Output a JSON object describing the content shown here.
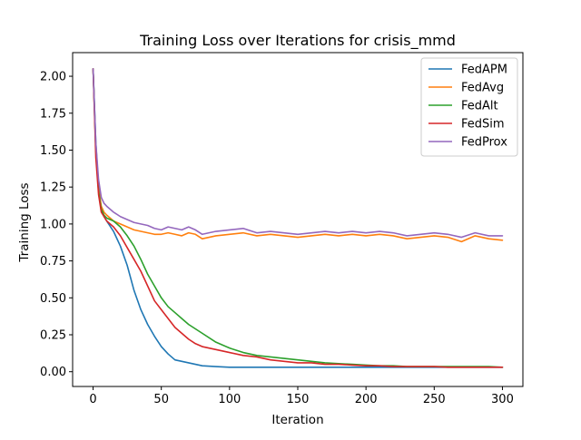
{
  "chart_data": {
    "type": "line",
    "title": "Training Loss over Iterations for crisis_mmd",
    "xlabel": "Iteration",
    "ylabel": "Training Loss",
    "xlim": [
      -15,
      315
    ],
    "ylim": [
      -0.1,
      2.16
    ],
    "xticks": [
      0,
      50,
      100,
      150,
      200,
      250,
      300
    ],
    "yticks": [
      0.0,
      0.25,
      0.5,
      0.75,
      1.0,
      1.25,
      1.5,
      1.75,
      2.0
    ],
    "xtick_labels": [
      "0",
      "50",
      "100",
      "150",
      "200",
      "250",
      "300"
    ],
    "ytick_labels": [
      "0.00",
      "0.25",
      "0.50",
      "0.75",
      "1.00",
      "1.25",
      "1.50",
      "1.75",
      "2.00"
    ],
    "grid": false,
    "legend_position": "upper right",
    "series": [
      {
        "name": "FedAPM",
        "color": "#1f77b4",
        "x": [
          0,
          2,
          4,
          6,
          8,
          10,
          15,
          20,
          25,
          30,
          35,
          40,
          45,
          50,
          55,
          60,
          65,
          70,
          75,
          80,
          90,
          100,
          110,
          120,
          130,
          140,
          150,
          160,
          170,
          180,
          190,
          200,
          210,
          220,
          230,
          240,
          250,
          260,
          270,
          280,
          290,
          300
        ],
        "y": [
          2.05,
          1.55,
          1.25,
          1.1,
          1.05,
          1.02,
          0.95,
          0.85,
          0.72,
          0.55,
          0.42,
          0.32,
          0.24,
          0.17,
          0.12,
          0.08,
          0.07,
          0.06,
          0.05,
          0.04,
          0.035,
          0.03,
          0.03,
          0.03,
          0.03,
          0.03,
          0.03,
          0.03,
          0.03,
          0.03,
          0.03,
          0.03,
          0.03,
          0.03,
          0.03,
          0.03,
          0.03,
          0.03,
          0.03,
          0.03,
          0.03,
          0.03
        ]
      },
      {
        "name": "FedAvg",
        "color": "#ff7f0e",
        "x": [
          0,
          2,
          4,
          6,
          8,
          10,
          15,
          20,
          25,
          30,
          35,
          40,
          45,
          50,
          55,
          60,
          65,
          70,
          75,
          80,
          90,
          100,
          110,
          120,
          130,
          140,
          150,
          160,
          170,
          180,
          190,
          200,
          210,
          220,
          230,
          240,
          250,
          260,
          270,
          280,
          290,
          300
        ],
        "y": [
          2.05,
          1.5,
          1.25,
          1.12,
          1.08,
          1.06,
          1.02,
          1.0,
          0.98,
          0.96,
          0.95,
          0.94,
          0.93,
          0.93,
          0.94,
          0.93,
          0.92,
          0.94,
          0.93,
          0.9,
          0.92,
          0.93,
          0.94,
          0.92,
          0.93,
          0.92,
          0.91,
          0.92,
          0.93,
          0.92,
          0.93,
          0.92,
          0.93,
          0.92,
          0.9,
          0.91,
          0.92,
          0.91,
          0.88,
          0.92,
          0.9,
          0.89
        ]
      },
      {
        "name": "FedAlt",
        "color": "#2ca02c",
        "x": [
          0,
          2,
          4,
          6,
          8,
          10,
          15,
          20,
          25,
          30,
          35,
          40,
          45,
          50,
          55,
          60,
          65,
          70,
          75,
          80,
          90,
          100,
          110,
          120,
          130,
          140,
          150,
          160,
          170,
          180,
          190,
          200,
          210,
          220,
          230,
          240,
          250,
          260,
          270,
          280,
          290,
          300
        ],
        "y": [
          2.05,
          1.5,
          1.22,
          1.1,
          1.06,
          1.04,
          1.02,
          0.98,
          0.92,
          0.85,
          0.76,
          0.66,
          0.58,
          0.5,
          0.44,
          0.4,
          0.36,
          0.32,
          0.29,
          0.26,
          0.2,
          0.16,
          0.13,
          0.11,
          0.1,
          0.09,
          0.08,
          0.07,
          0.06,
          0.055,
          0.05,
          0.045,
          0.04,
          0.04,
          0.035,
          0.035,
          0.035,
          0.035,
          0.035,
          0.035,
          0.035,
          0.03
        ]
      },
      {
        "name": "FedSim",
        "color": "#d62728",
        "x": [
          0,
          2,
          4,
          6,
          8,
          10,
          15,
          20,
          25,
          30,
          35,
          40,
          45,
          50,
          55,
          60,
          65,
          70,
          75,
          80,
          90,
          100,
          110,
          120,
          130,
          140,
          150,
          160,
          170,
          180,
          190,
          200,
          210,
          220,
          230,
          240,
          250,
          260,
          270,
          280,
          290,
          300
        ],
        "y": [
          2.05,
          1.45,
          1.2,
          1.08,
          1.05,
          1.02,
          0.98,
          0.92,
          0.84,
          0.76,
          0.68,
          0.58,
          0.48,
          0.42,
          0.36,
          0.3,
          0.26,
          0.22,
          0.19,
          0.17,
          0.15,
          0.13,
          0.11,
          0.1,
          0.08,
          0.07,
          0.06,
          0.06,
          0.05,
          0.05,
          0.045,
          0.04,
          0.04,
          0.035,
          0.035,
          0.035,
          0.035,
          0.03,
          0.03,
          0.03,
          0.03,
          0.03
        ]
      },
      {
        "name": "FedProx",
        "color": "#9467bd",
        "x": [
          0,
          2,
          4,
          6,
          8,
          10,
          15,
          20,
          25,
          30,
          35,
          40,
          45,
          50,
          55,
          60,
          65,
          70,
          75,
          80,
          90,
          100,
          110,
          120,
          130,
          140,
          150,
          160,
          170,
          180,
          190,
          200,
          210,
          220,
          230,
          240,
          250,
          260,
          270,
          280,
          290,
          300
        ],
        "y": [
          2.05,
          1.55,
          1.3,
          1.18,
          1.14,
          1.12,
          1.08,
          1.05,
          1.03,
          1.01,
          1.0,
          0.99,
          0.97,
          0.96,
          0.98,
          0.97,
          0.96,
          0.98,
          0.96,
          0.93,
          0.95,
          0.96,
          0.97,
          0.94,
          0.95,
          0.94,
          0.93,
          0.94,
          0.95,
          0.94,
          0.95,
          0.94,
          0.95,
          0.94,
          0.92,
          0.93,
          0.94,
          0.93,
          0.91,
          0.94,
          0.92,
          0.92
        ]
      }
    ]
  }
}
